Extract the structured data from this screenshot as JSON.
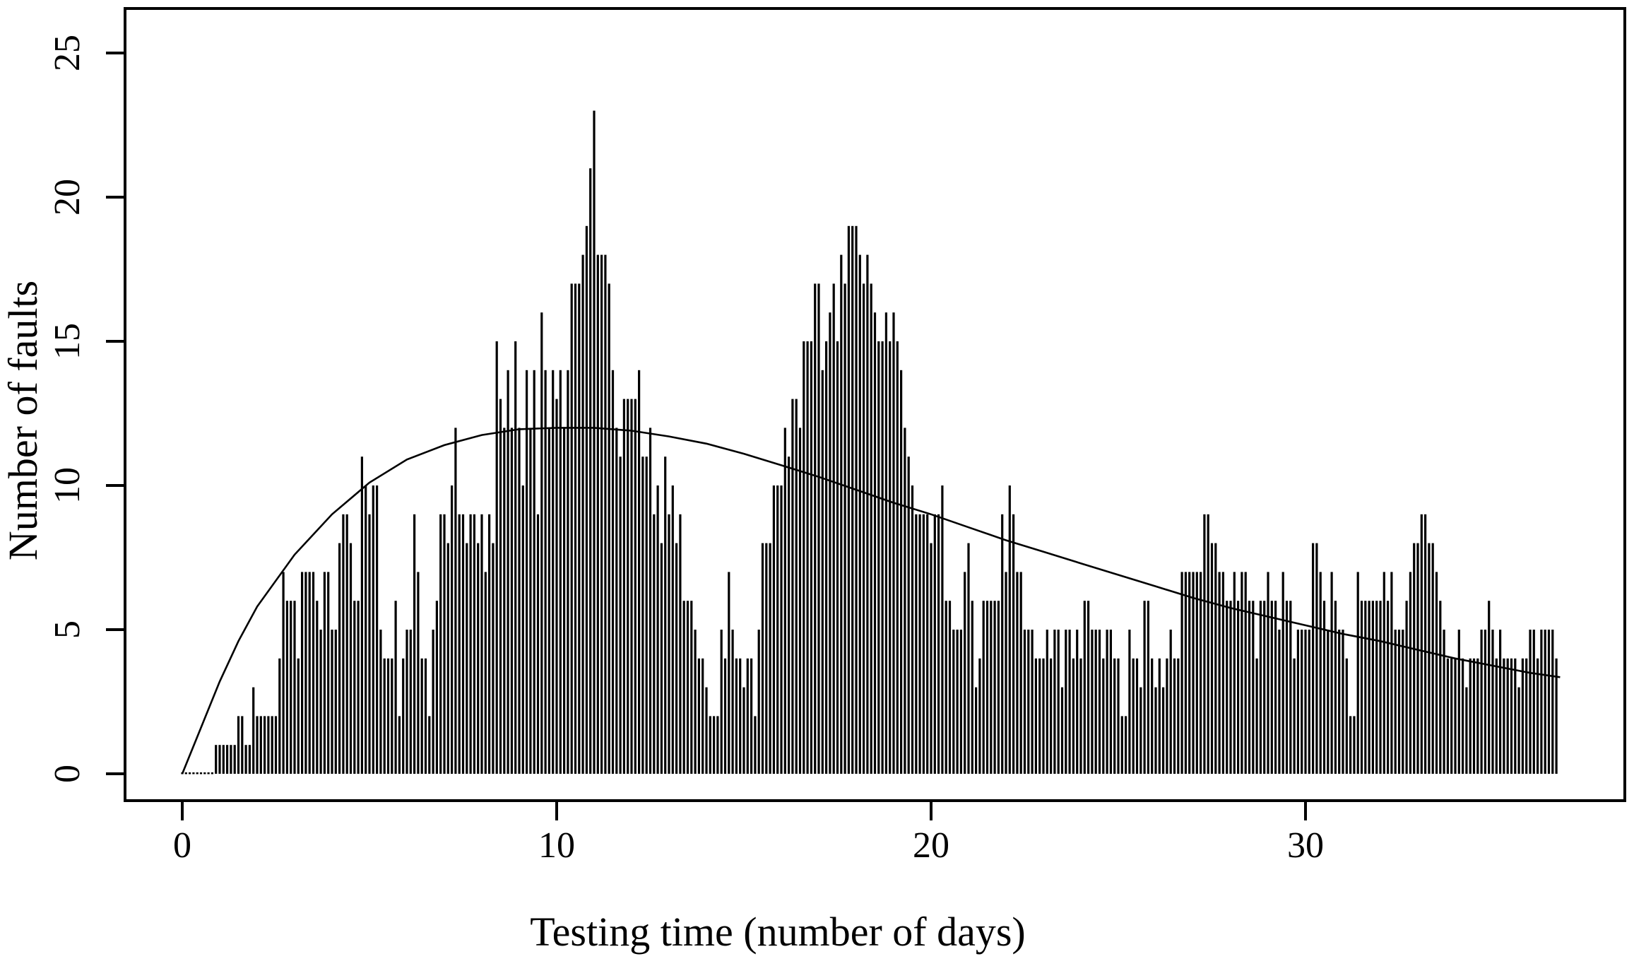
{
  "figure": {
    "background": "#ffffff",
    "ink_color": "#000000",
    "x_axis_title": "Testing time (number of days)",
    "y_axis_title": "Number of faults"
  },
  "chart_data": {
    "type": "bar",
    "title": "",
    "xlabel": "Testing time (number of days)",
    "ylabel": "Number of faults",
    "xlim": [
      -1.5,
      38.5
    ],
    "ylim": [
      0,
      25
    ],
    "x_ticks": [
      0,
      10,
      20,
      30
    ],
    "y_ticks": [
      0,
      5,
      10,
      15,
      20,
      25
    ],
    "grid": false,
    "legend": "none",
    "bar_color": "#000000",
    "bar_start_day": 0.0,
    "bar_interval_days": 0.1,
    "bars": [
      0,
      0,
      0,
      0,
      0,
      0,
      0,
      0,
      0,
      1,
      1,
      1,
      1,
      1,
      1,
      2,
      2,
      1,
      1,
      3,
      2,
      2,
      2,
      2,
      2,
      2,
      4,
      7,
      6,
      6,
      6,
      4,
      7,
      7,
      7,
      7,
      6,
      5,
      7,
      7,
      5,
      5,
      8,
      9,
      9,
      8,
      6,
      6,
      11,
      10,
      9,
      10,
      10,
      5,
      4,
      4,
      4,
      6,
      2,
      4,
      5,
      5,
      9,
      7,
      4,
      4,
      2,
      5,
      6,
      9,
      9,
      8,
      10,
      12,
      9,
      9,
      8,
      9,
      9,
      8,
      9,
      7,
      9,
      8,
      15,
      13,
      12,
      14,
      12,
      15,
      12,
      10,
      14,
      12,
      14,
      9,
      16,
      14,
      12,
      14,
      13,
      14,
      12,
      14,
      17,
      17,
      17,
      18,
      19,
      21,
      23,
      18,
      18,
      18,
      17,
      14,
      12,
      11,
      13,
      13,
      13,
      13,
      14,
      11,
      11,
      12,
      9,
      10,
      8,
      11,
      9,
      10,
      8,
      9,
      6,
      6,
      6,
      5,
      4,
      4,
      3,
      2,
      2,
      2,
      5,
      4,
      7,
      5,
      4,
      4,
      3,
      4,
      4,
      2,
      5,
      8,
      8,
      8,
      10,
      10,
      10,
      12,
      11,
      13,
      13,
      12,
      15,
      15,
      15,
      17,
      17,
      14,
      15,
      16,
      17,
      15,
      18,
      17,
      19,
      19,
      19,
      18,
      17,
      18,
      17,
      16,
      15,
      15,
      16,
      15,
      16,
      15,
      14,
      12,
      11,
      10,
      9,
      9,
      9,
      9,
      8,
      9,
      9,
      10,
      6,
      6,
      5,
      5,
      5,
      7,
      8,
      6,
      3,
      4,
      6,
      6,
      6,
      6,
      6,
      9,
      7,
      10,
      9,
      7,
      7,
      5,
      5,
      5,
      4,
      4,
      4,
      5,
      4,
      5,
      5,
      3,
      5,
      5,
      4,
      5,
      4,
      6,
      6,
      5,
      5,
      5,
      4,
      5,
      5,
      4,
      4,
      2,
      2,
      5,
      4,
      4,
      3,
      6,
      6,
      4,
      3,
      4,
      3,
      4,
      5,
      4,
      4,
      7,
      7,
      7,
      7,
      7,
      7,
      9,
      9,
      8,
      8,
      7,
      7,
      6,
      6,
      7,
      6,
      7,
      7,
      6,
      6,
      4,
      6,
      6,
      7,
      6,
      6,
      5,
      7,
      6,
      6,
      4,
      5,
      5,
      5,
      5,
      8,
      8,
      7,
      6,
      5,
      7,
      6,
      5,
      5,
      4,
      2,
      2,
      7,
      6,
      6,
      6,
      6,
      6,
      6,
      7,
      6,
      7,
      5,
      5,
      5,
      6,
      7,
      8,
      8,
      9,
      9,
      8,
      8,
      7,
      6,
      5,
      4,
      4,
      4,
      5,
      4,
      3,
      4,
      4,
      4,
      5,
      5,
      6,
      5,
      4,
      5,
      4,
      4,
      4,
      4,
      3,
      4,
      4,
      5,
      5,
      4,
      5,
      5,
      5,
      5,
      4
    ],
    "fitted_curve": {
      "name": "fitted mean value intensity curve",
      "x": [
        0,
        0.5,
        1,
        1.5,
        2,
        3,
        4,
        5,
        6,
        7,
        8,
        9,
        10,
        11,
        12,
        13,
        14,
        15,
        16,
        17,
        18,
        19,
        20,
        21,
        22,
        23,
        24,
        25,
        26,
        27,
        28,
        29,
        30,
        31,
        32,
        33,
        34,
        35,
        36,
        36.8
      ],
      "y": [
        0,
        1.6,
        3.2,
        4.6,
        5.8,
        7.6,
        9.0,
        10.1,
        10.9,
        11.4,
        11.75,
        11.95,
        12.0,
        12.0,
        11.9,
        11.7,
        11.45,
        11.1,
        10.7,
        10.3,
        9.85,
        9.4,
        9.0,
        8.55,
        8.1,
        7.7,
        7.3,
        6.9,
        6.5,
        6.1,
        5.75,
        5.45,
        5.15,
        4.85,
        4.6,
        4.3,
        4.0,
        3.75,
        3.5,
        3.35
      ]
    }
  }
}
